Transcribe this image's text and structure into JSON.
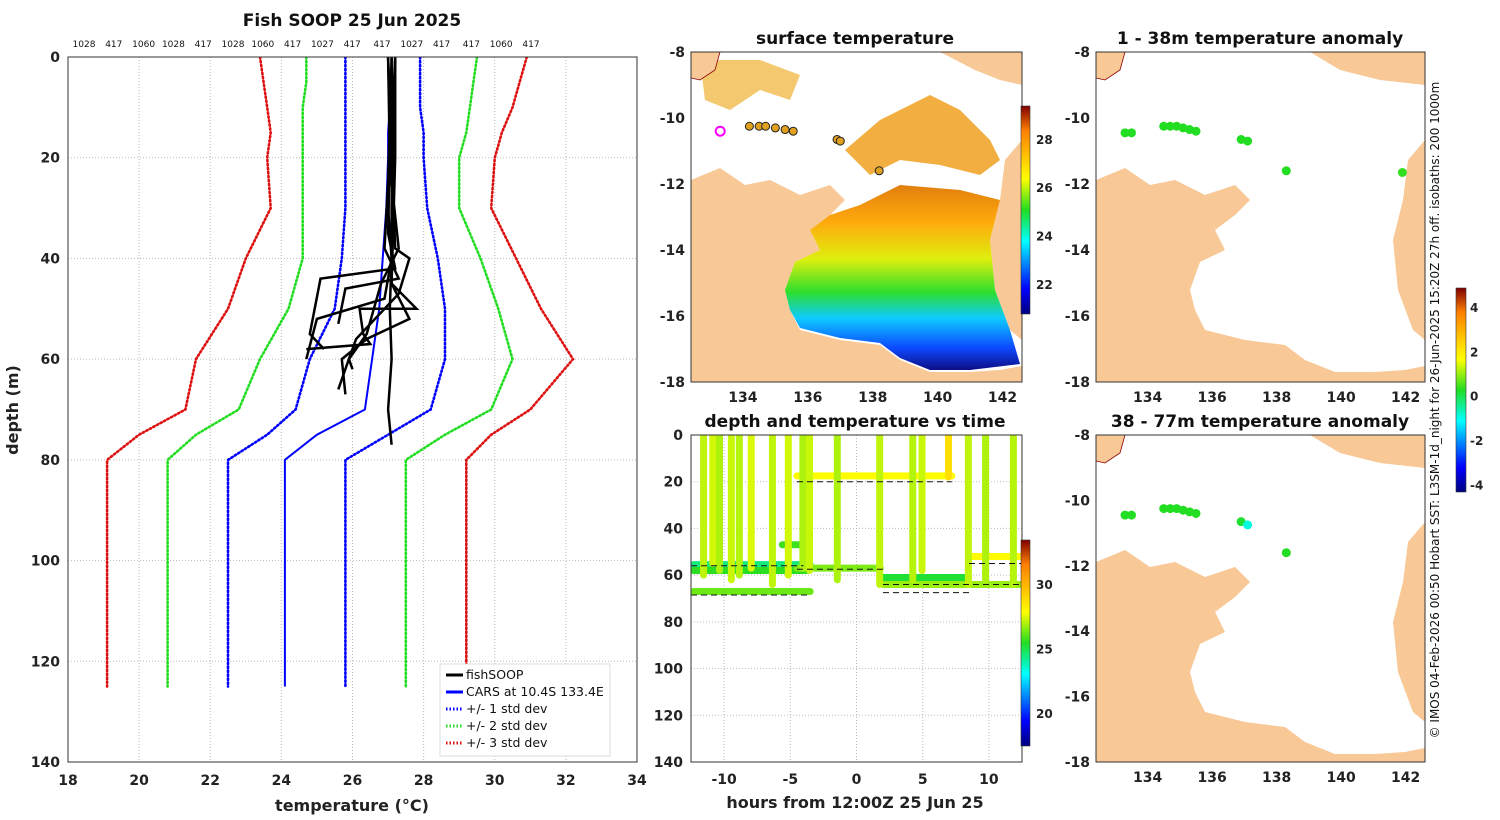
{
  "colors": {
    "land": "#f8c896",
    "grid": "#bbbbbb",
    "std1": "#0000ff",
    "std2": "#22dd22",
    "std3": "#dd1111",
    "cars": "#0000ff",
    "soop": "#000000"
  },
  "credit": "© IMOS 04-Feb-2026 00:50 Hobart SST: L3SM-1d_night for 26-Jun-2025 15:20Z 27h off. isobaths: 200  1000m",
  "chart_data": [
    {
      "id": "profile",
      "type": "line",
      "title": "Fish SOOP 25 Jun 2025",
      "xlabel": "temperature (°C)",
      "ylabel": "depth (m)",
      "xlim": [
        18,
        34
      ],
      "ylim": [
        0,
        140
      ],
      "xticks": [
        18,
        20,
        22,
        24,
        26,
        28,
        30,
        32,
        34
      ],
      "yticks": [
        0,
        20,
        40,
        60,
        80,
        100,
        120,
        140
      ],
      "top_labels": [
        "1028",
        "417",
        "1060",
        "1028",
        "417",
        "1028",
        "1060",
        "417",
        "1027",
        "417",
        "417",
        "1027",
        "417",
        "417",
        "1060",
        "417"
      ],
      "legend": [
        "fishSOOP",
        "CARS at 10.4S 133.4E",
        "+/- 1 std dev",
        "+/- 2 std dev",
        "+/- 3 std dev"
      ],
      "depths": [
        0,
        5,
        10,
        15,
        20,
        30,
        40,
        50,
        60,
        70,
        75,
        80,
        125
      ],
      "series": [
        {
          "name": "CARS at 10.4S 133.4E",
          "style": "solid",
          "color": "#0000ff",
          "x": [
            27.1,
            27.1,
            27.05,
            27.0,
            27.0,
            26.95,
            26.85,
            26.75,
            26.55,
            26.35,
            25.0,
            24.1,
            24.1
          ]
        },
        {
          "name": "+1 std dev",
          "style": "dot",
          "color": "#0000ff",
          "x": [
            27.9,
            27.9,
            27.9,
            28.0,
            28.0,
            28.1,
            28.4,
            28.6,
            28.6,
            28.2,
            27.0,
            25.8,
            25.8
          ]
        },
        {
          "name": "-1 std dev",
          "style": "dot",
          "color": "#0000ff",
          "x": [
            25.8,
            25.8,
            25.8,
            25.8,
            25.8,
            25.8,
            25.7,
            25.5,
            24.8,
            24.4,
            23.6,
            22.5,
            22.5
          ]
        },
        {
          "name": "+2 std dev",
          "style": "dot",
          "color": "#22dd22",
          "x": [
            29.5,
            29.4,
            29.3,
            29.2,
            29.0,
            29.0,
            29.6,
            30.1,
            30.5,
            29.9,
            28.6,
            27.5,
            27.5
          ]
        },
        {
          "name": "-2 std dev",
          "style": "dot",
          "color": "#22dd22",
          "x": [
            24.7,
            24.7,
            24.6,
            24.6,
            24.6,
            24.6,
            24.6,
            24.2,
            23.4,
            22.8,
            21.6,
            20.8,
            20.8
          ]
        },
        {
          "name": "+3 std dev",
          "style": "dot",
          "color": "#dd1111",
          "x": [
            30.9,
            30.7,
            30.5,
            30.2,
            30.0,
            29.9,
            30.6,
            31.3,
            32.2,
            31.0,
            29.9,
            29.2,
            29.2
          ]
        },
        {
          "name": "-3 std dev",
          "style": "dot",
          "color": "#dd1111",
          "x": [
            23.4,
            23.5,
            23.6,
            23.7,
            23.6,
            23.7,
            23.0,
            22.5,
            21.6,
            21.3,
            20.0,
            19.1,
            19.1
          ]
        }
      ]
    },
    {
      "id": "sst",
      "type": "heatmap",
      "title": "surface temperature",
      "xlim": [
        132.4,
        142.6
      ],
      "ylim": [
        -18,
        -8
      ],
      "xticks": [
        134,
        136,
        138,
        140,
        142
      ],
      "yticks": [
        -8,
        -10,
        -12,
        -14,
        -16,
        -18
      ],
      "colorbar": {
        "min": 20.8,
        "max": 29.4,
        "ticks": [
          22,
          24,
          26,
          28
        ]
      },
      "points": [
        [
          133.3,
          -10.4,
          "marker"
        ],
        [
          134.2,
          -10.25
        ],
        [
          134.5,
          -10.25
        ],
        [
          134.7,
          -10.25
        ],
        [
          135.0,
          -10.3
        ],
        [
          135.3,
          -10.35
        ],
        [
          135.55,
          -10.4
        ],
        [
          136.9,
          -10.65
        ],
        [
          137.0,
          -10.7
        ],
        [
          138.2,
          -11.6
        ]
      ]
    },
    {
      "id": "anom1",
      "type": "scatter",
      "title": "1 - 38m temperature anomaly",
      "xlim": [
        132.4,
        142.6
      ],
      "ylim": [
        -18,
        -8
      ],
      "xticks": [
        134,
        136,
        138,
        140,
        142
      ],
      "yticks": [
        -8,
        -10,
        -12,
        -14,
        -16,
        -18
      ],
      "points": [
        [
          133.3,
          -10.45,
          0.3
        ],
        [
          133.5,
          -10.45,
          0.3
        ],
        [
          134.5,
          -10.25,
          0.3
        ],
        [
          134.7,
          -10.25,
          0.3
        ],
        [
          134.9,
          -10.25,
          0.3
        ],
        [
          135.1,
          -10.3,
          0.3
        ],
        [
          135.3,
          -10.35,
          0.3
        ],
        [
          135.5,
          -10.4,
          0.3
        ],
        [
          136.9,
          -10.65,
          0.3
        ],
        [
          137.1,
          -10.7,
          0.3
        ],
        [
          138.3,
          -11.6,
          0.3
        ],
        [
          141.9,
          -11.65,
          0.4
        ]
      ]
    },
    {
      "id": "anom2",
      "type": "scatter",
      "title": "38 - 77m temperature anomaly",
      "xlim": [
        132.4,
        142.6
      ],
      "ylim": [
        -18,
        -8
      ],
      "xticks": [
        134,
        136,
        138,
        140,
        142
      ],
      "yticks": [
        -8,
        -10,
        -12,
        -14,
        -16,
        -18
      ],
      "colorbar": {
        "min": -4.3,
        "max": 4.9,
        "ticks": [
          -4,
          -2,
          0,
          2,
          4
        ]
      },
      "points": [
        [
          133.3,
          -10.45,
          0.3
        ],
        [
          133.5,
          -10.45,
          0.3
        ],
        [
          134.5,
          -10.25,
          0.3
        ],
        [
          134.7,
          -10.25,
          0.3
        ],
        [
          134.9,
          -10.25,
          0.3
        ],
        [
          135.1,
          -10.3,
          0.3
        ],
        [
          135.3,
          -10.35,
          0.3
        ],
        [
          135.5,
          -10.4,
          0.3
        ],
        [
          136.9,
          -10.65,
          0.2
        ],
        [
          137.1,
          -10.75,
          -0.9
        ],
        [
          138.3,
          -11.6,
          0.3
        ]
      ]
    },
    {
      "id": "timeseries",
      "type": "line",
      "title": "depth and temperature vs time",
      "xlabel": "hours from 12:00Z 25 Jun 25",
      "xlim": [
        -12.5,
        12.5
      ],
      "ylim": [
        0,
        140
      ],
      "xticks": [
        -10,
        -5,
        0,
        5,
        10
      ],
      "yticks": [
        0,
        20,
        40,
        60,
        80,
        100,
        120,
        140
      ],
      "colorbar": {
        "min": 17.5,
        "max": 33.5,
        "ticks": [
          20,
          25,
          30
        ]
      },
      "reference_lines": [
        {
          "x": [
            -12.5,
            -3.5
          ],
          "y": 68.5
        },
        {
          "x": [
            -12.5,
            -4.0
          ],
          "y": 56
        },
        {
          "x": [
            -4.5,
            7.2
          ],
          "y": 20
        },
        {
          "x": [
            -4.5,
            2.0
          ],
          "y": 57.5
        },
        {
          "x": [
            2.0,
            12.5
          ],
          "y": 64
        },
        {
          "x": [
            2.0,
            8.5
          ],
          "y": 67.5
        },
        {
          "x": [
            8.5,
            12.5
          ],
          "y": 55
        }
      ],
      "profiles": [
        {
          "t": [
            -11.7,
            -11.4
          ],
          "bottom": 60,
          "temp": 27.2
        },
        {
          "t": [
            -11.0,
            -10.7
          ],
          "bottom": 55,
          "temp": 27.4
        },
        {
          "t": [
            -10.5,
            -10.2
          ],
          "bottom": 58,
          "temp": 27.0
        },
        {
          "t": [
            -9.6,
            -9.3
          ],
          "bottom": 62,
          "temp": 27.3
        },
        {
          "t": [
            -9.0,
            -8.7
          ],
          "bottom": 60,
          "temp": 27.1
        },
        {
          "t": [
            -8.1,
            -7.8
          ],
          "bottom": 57,
          "temp": 27.5
        },
        {
          "t": [
            -6.5,
            -6.2
          ],
          "bottom": 64,
          "temp": 27.2
        },
        {
          "t": [
            -5.3,
            -5.0
          ],
          "bottom": 60,
          "temp": 27.4
        },
        {
          "t": [
            -4.2,
            -3.9
          ],
          "bottom": 57,
          "temp": 27.0
        },
        {
          "t": [
            -3.7,
            -3.4
          ],
          "bottom": 58,
          "temp": 27.3
        },
        {
          "t": [
            -1.6,
            -1.3
          ],
          "bottom": 62,
          "temp": 27.0
        },
        {
          "t": [
            1.6,
            1.9
          ],
          "bottom": 64,
          "temp": 27.2
        },
        {
          "t": [
            4.1,
            4.4
          ],
          "bottom": 62,
          "temp": 27.1
        },
        {
          "t": [
            4.8,
            5.1
          ],
          "bottom": 58,
          "temp": 27.3
        },
        {
          "t": [
            6.8,
            7.1
          ],
          "bottom": 18,
          "temp": 28.8
        },
        {
          "t": [
            8.3,
            8.6
          ],
          "bottom": 64,
          "temp": 27.2
        },
        {
          "t": [
            9.6,
            9.9
          ],
          "bottom": 62,
          "temp": 27.0
        },
        {
          "t": [
            11.7,
            12.0
          ],
          "bottom": 64,
          "temp": 27.1
        }
      ],
      "segments": [
        {
          "x": [
            -12.3,
            -3.5
          ],
          "y": 55.5,
          "temp": 24.5
        },
        {
          "x": [
            -12.3,
            -3.5
          ],
          "y": 67,
          "temp": 26.3
        },
        {
          "x": [
            -12.3,
            -3.8
          ],
          "y": 58,
          "temp": 25.6
        },
        {
          "x": [
            -5.6,
            -4.3
          ],
          "y": 47,
          "temp": 25.8
        },
        {
          "x": [
            -4.5,
            7.2
          ],
          "y": 17.5,
          "temp": 28.0
        },
        {
          "x": [
            -4.5,
            1.8
          ],
          "y": 57,
          "temp": 26.5
        },
        {
          "x": [
            1.9,
            8.3
          ],
          "y": 61,
          "temp": 25.3
        },
        {
          "x": [
            2.0,
            12.3
          ],
          "y": 64,
          "temp": 26.8
        },
        {
          "x": [
            8.5,
            12.3
          ],
          "y": 52,
          "temp": 28.0
        }
      ]
    }
  ]
}
